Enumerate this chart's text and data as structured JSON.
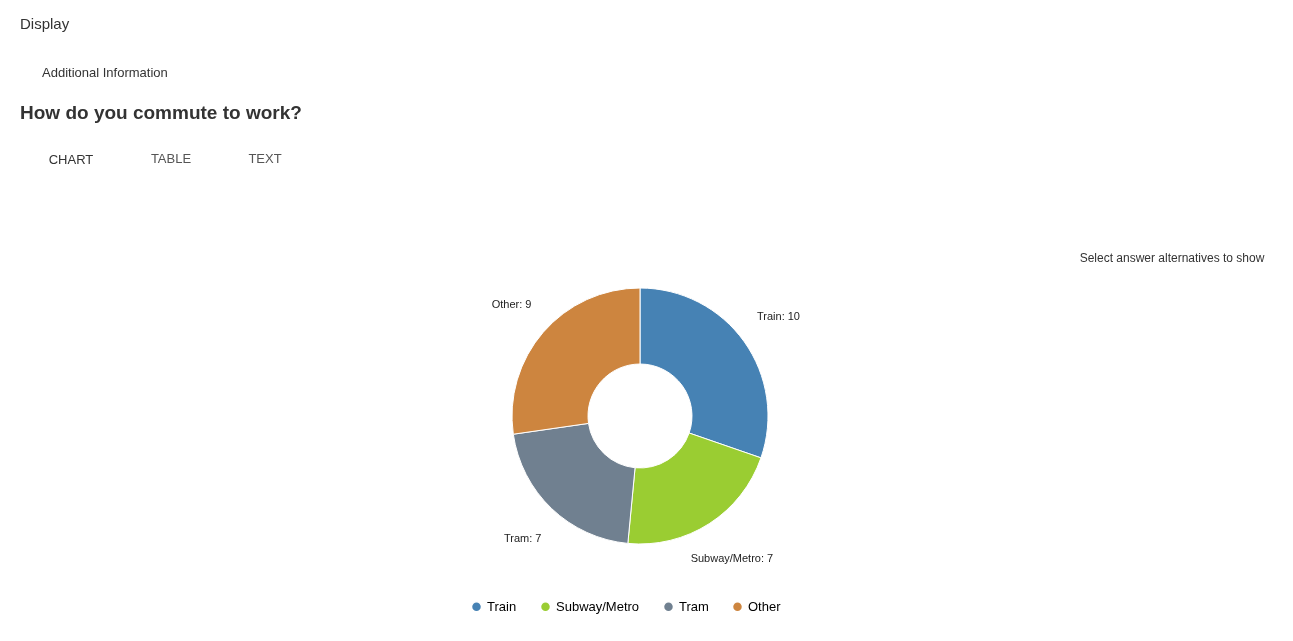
{
  "chart_data": {
    "type": "donut",
    "title": "How do you commute to work?",
    "categories": [
      "Train",
      "Subway/Metro",
      "Tram",
      "Other"
    ],
    "values": [
      10,
      7,
      7,
      9
    ],
    "colors": [
      "#4682b4",
      "#9acd32",
      "#708090",
      "#cd853f"
    ],
    "value_labels": [
      "Train: 10",
      "Subway/Metro: 7",
      "Tram: 7",
      "Other: 9"
    ],
    "legend": "bottom",
    "annotations": [
      "Display",
      "Additional Information",
      "CHART",
      "TABLE",
      "TEXT",
      "Select answer alternatives to show"
    ]
  }
}
